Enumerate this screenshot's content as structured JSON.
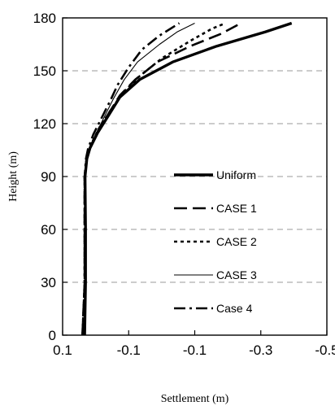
{
  "chart_data": {
    "type": "line",
    "xlabel": "Settlement (m)",
    "ylabel": "Height (m)",
    "x_ticks": [
      "0.1",
      "-0.1",
      "-0.1",
      "-0.3",
      "-0.5"
    ],
    "y_ticks": [
      "0",
      "30",
      "60",
      "90",
      "120",
      "150",
      "180"
    ],
    "xlim": [
      0.1,
      -0.5
    ],
    "ylim": [
      0,
      180
    ],
    "grid": "horizontal-dashed",
    "legend_position": "right-middle",
    "series": [
      {
        "name": "Uniform",
        "style": "solid-thick",
        "color": "#000000",
        "points": [
          [
            0.05,
            0
          ],
          [
            0.048,
            30
          ],
          [
            0.048,
            60
          ],
          [
            0.049,
            90
          ],
          [
            0.045,
            100
          ],
          [
            0.038,
            106
          ],
          [
            0.02,
            115
          ],
          [
            -0.005,
            125
          ],
          [
            -0.03,
            135
          ],
          [
            -0.075,
            145
          ],
          [
            -0.15,
            155
          ],
          [
            -0.25,
            164
          ],
          [
            -0.36,
            172
          ],
          [
            -0.42,
            177
          ]
        ]
      },
      {
        "name": "CASE 1",
        "style": "dash-long",
        "color": "#000000",
        "points": [
          [
            0.055,
            0
          ],
          [
            0.05,
            30
          ],
          [
            0.05,
            60
          ],
          [
            0.05,
            90
          ],
          [
            0.046,
            100
          ],
          [
            0.035,
            108
          ],
          [
            0.015,
            118
          ],
          [
            -0.01,
            128
          ],
          [
            -0.03,
            136
          ],
          [
            -0.065,
            145
          ],
          [
            -0.115,
            155
          ],
          [
            -0.19,
            164
          ],
          [
            -0.26,
            171
          ],
          [
            -0.305,
            177
          ]
        ]
      },
      {
        "name": "CASE 2",
        "style": "dotted",
        "color": "#000000",
        "points": [
          [
            0.055,
            0
          ],
          [
            0.05,
            30
          ],
          [
            0.05,
            60
          ],
          [
            0.05,
            90
          ],
          [
            0.045,
            100
          ],
          [
            0.036,
            108
          ],
          [
            0.016,
            118
          ],
          [
            -0.01,
            128
          ],
          [
            -0.035,
            137
          ],
          [
            -0.075,
            147
          ],
          [
            -0.125,
            157
          ],
          [
            -0.19,
            167
          ],
          [
            -0.24,
            174
          ],
          [
            -0.27,
            177
          ]
        ]
      },
      {
        "name": "CASE 3",
        "style": "thin-solid",
        "color": "#000000",
        "points": [
          [
            0.05,
            0
          ],
          [
            0.048,
            30
          ],
          [
            0.048,
            60
          ],
          [
            0.049,
            90
          ],
          [
            0.046,
            100
          ],
          [
            0.04,
            106
          ],
          [
            0.025,
            114
          ],
          [
            0.005,
            124
          ],
          [
            -0.015,
            134
          ],
          [
            -0.04,
            145
          ],
          [
            -0.07,
            155
          ],
          [
            -0.12,
            165
          ],
          [
            -0.16,
            172
          ],
          [
            -0.2,
            177
          ]
        ]
      },
      {
        "name": "Case 4",
        "style": "dash-dot",
        "color": "#000000",
        "points": [
          [
            0.055,
            0
          ],
          [
            0.05,
            30
          ],
          [
            0.05,
            60
          ],
          [
            0.05,
            90
          ],
          [
            0.047,
            100
          ],
          [
            0.042,
            106
          ],
          [
            0.03,
            114
          ],
          [
            0.01,
            124
          ],
          [
            -0.01,
            134
          ],
          [
            -0.025,
            142
          ],
          [
            -0.05,
            152
          ],
          [
            -0.08,
            162
          ],
          [
            -0.12,
            170
          ],
          [
            -0.165,
            177
          ]
        ]
      }
    ]
  }
}
